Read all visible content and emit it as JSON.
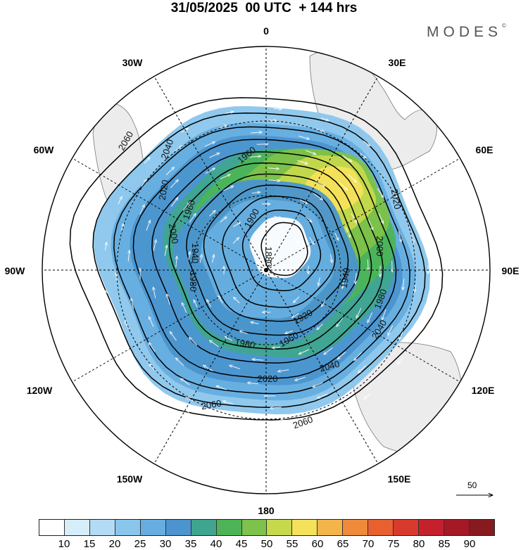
{
  "title": "31/05/2025  00 UTC  + 144 hrs",
  "brand": "MODES",
  "brand_mark": "©",
  "longitude_labels": {
    "lon_0": "0",
    "lon_30E": "30E",
    "lon_60E": "60E",
    "lon_90E": "90E",
    "lon_120E": "120E",
    "lon_150E": "150E",
    "lon_180": "180",
    "lon_150W": "150W",
    "lon_120W": "120W",
    "lon_90W": "90W",
    "lon_60W": "60W",
    "lon_30W": "30W"
  },
  "contour_labels": [
    "2060",
    "2040",
    "2020",
    "2000",
    "1980",
    "1960",
    "1940",
    "1920",
    "1900",
    "1880"
  ],
  "reference_vector_label": "50",
  "colorbar": {
    "ticks": [
      "10",
      "15",
      "20",
      "25",
      "30",
      "35",
      "40",
      "45",
      "50",
      "55",
      "60",
      "65",
      "70",
      "75",
      "80",
      "85",
      "90"
    ],
    "colors": [
      "#ffffff",
      "#d6eefa",
      "#b3dcf4",
      "#8ac6ec",
      "#66aee0",
      "#4b95cf",
      "#3fa58f",
      "#4cb457",
      "#7dc24a",
      "#c6d94c",
      "#f6e15a",
      "#f3b54a",
      "#ef8a3a",
      "#e8602f",
      "#d83a2e",
      "#c4202d",
      "#a51826",
      "#861a1e"
    ],
    "speed_palette": [
      "#8ac6ec",
      "#66aee0",
      "#4b95cf",
      "#3fa58f",
      "#4cb457",
      "#7dc24a",
      "#c6d94c",
      "#f6e15a"
    ]
  }
}
